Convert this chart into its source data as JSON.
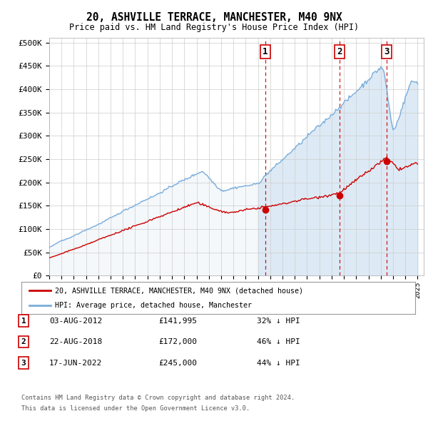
{
  "title": "20, ASHVILLE TERRACE, MANCHESTER, M40 9NX",
  "subtitle": "Price paid vs. HM Land Registry's House Price Index (HPI)",
  "ylabel_ticks": [
    "£0",
    "£50K",
    "£100K",
    "£150K",
    "£200K",
    "£250K",
    "£300K",
    "£350K",
    "£400K",
    "£450K",
    "£500K"
  ],
  "ytick_values": [
    0,
    50000,
    100000,
    150000,
    200000,
    250000,
    300000,
    350000,
    400000,
    450000,
    500000
  ],
  "ylim": [
    0,
    510000
  ],
  "xlim_start": 1995.0,
  "xlim_end": 2025.5,
  "hpi_color": "#7aaddb",
  "hpi_fill_color": "#ddeaf5",
  "price_color": "#cc0000",
  "background_color": "#ffffff",
  "grid_color": "#cccccc",
  "dashed_line_color": "#cc0000",
  "transactions": [
    {
      "date_year": 2012.59,
      "price": 141995,
      "label": "1"
    },
    {
      "date_year": 2018.64,
      "price": 172000,
      "label": "2"
    },
    {
      "date_year": 2022.46,
      "price": 245000,
      "label": "3"
    }
  ],
  "transaction_table": [
    {
      "num": "1",
      "date": "03-AUG-2012",
      "price": "£141,995",
      "pct": "32% ↓ HPI"
    },
    {
      "num": "2",
      "date": "22-AUG-2018",
      "price": "£172,000",
      "pct": "46% ↓ HPI"
    },
    {
      "num": "3",
      "date": "17-JUN-2022",
      "price": "£245,000",
      "pct": "44% ↓ HPI"
    }
  ],
  "legend_line1": "20, ASHVILLE TERRACE, MANCHESTER, M40 9NX (detached house)",
  "legend_line2": "HPI: Average price, detached house, Manchester",
  "footer1": "Contains HM Land Registry data © Crown copyright and database right 2024.",
  "footer2": "This data is licensed under the Open Government Licence v3.0.",
  "xtick_years": [
    1995,
    1996,
    1997,
    1998,
    1999,
    2000,
    2001,
    2002,
    2003,
    2004,
    2005,
    2006,
    2007,
    2008,
    2009,
    2010,
    2011,
    2012,
    2013,
    2014,
    2015,
    2016,
    2017,
    2018,
    2019,
    2020,
    2021,
    2022,
    2023,
    2024,
    2025
  ]
}
